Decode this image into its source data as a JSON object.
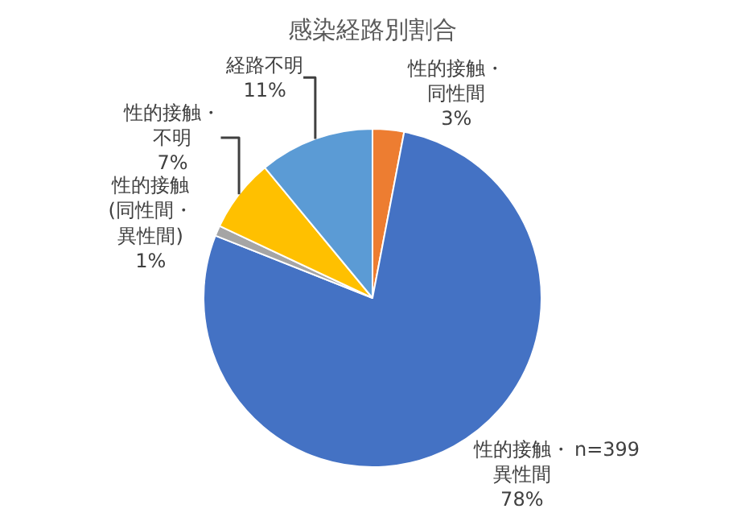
{
  "chart_data": {
    "type": "pie",
    "title": "感染経路別割合",
    "categories": [
      "性的接触・同性間",
      "性的接触・異性間",
      "性的接触(同性間・異性間)",
      "性的接触・不明",
      "経路不明"
    ],
    "values": [
      3,
      78,
      1,
      7,
      11
    ],
    "value_labels": [
      "3%",
      "78%",
      "1%",
      "7%",
      "11%"
    ],
    "colors": [
      "#ed7d31",
      "#4472c4",
      "#a5a5a5",
      "#ffc000",
      "#5b9bd5"
    ],
    "annotations": [
      "n=399"
    ],
    "legend": false
  }
}
